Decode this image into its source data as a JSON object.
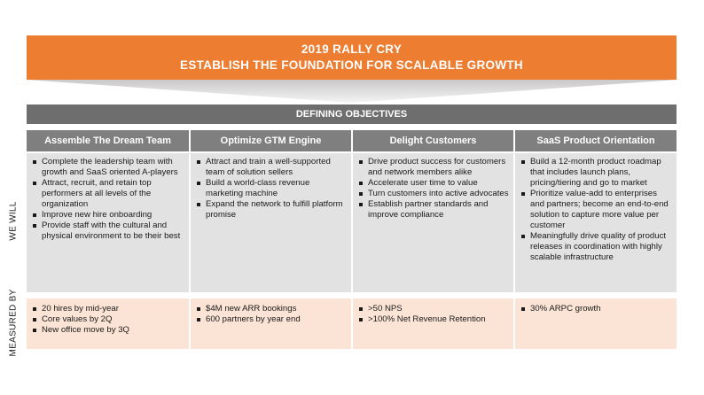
{
  "banner": {
    "line1": "2019 RALLY CRY",
    "line2": "ESTABLISH  THE FOUNDATION FOR SCALABLE GROWTH"
  },
  "objectives_title": "DEFINING OBJECTIVES",
  "row_labels": {
    "will": "WE WILL",
    "measured": "MEASURED BY"
  },
  "columns": [
    {
      "title": "Assemble The Dream Team",
      "will": [
        "Complete the leadership team with growth and SaaS oriented A-players",
        "Attract, recruit, and retain top performers at all levels of the organization",
        "Improve new hire onboarding",
        "Provide staff with the cultural and physical environment to be their best"
      ],
      "measured": [
        "20 hires by mid-year",
        "Core values by 2Q",
        "New office move by 3Q"
      ]
    },
    {
      "title": "Optimize GTM Engine",
      "will": [
        "Attract and train a well-supported team of solution sellers",
        "Build a world-class revenue marketing machine",
        "Expand the network to fulfill platform promise"
      ],
      "measured": [
        "$4M new ARR bookings",
        "600 partners by year end"
      ]
    },
    {
      "title": "Delight Customers",
      "will": [
        "Drive product success for customers and network members alike",
        "Accelerate user time to value",
        "Turn customers into active advocates",
        "Establish partner standards and improve compliance"
      ],
      "measured": [
        ">50 NPS",
        ">100% Net Revenue Retention"
      ]
    },
    {
      "title": "SaaS Product Orientation",
      "will": [
        "Build a 12-month product roadmap that includes launch plans, pricing/tiering and go to market",
        "Prioritize value-add to enterprises and partners; become an end-to-end solution to capture more value per customer",
        "Meaningfully drive quality of product releases in coordination with highly scalable infrastructure"
      ],
      "measured": [
        "30% ARPC growth"
      ]
    }
  ]
}
